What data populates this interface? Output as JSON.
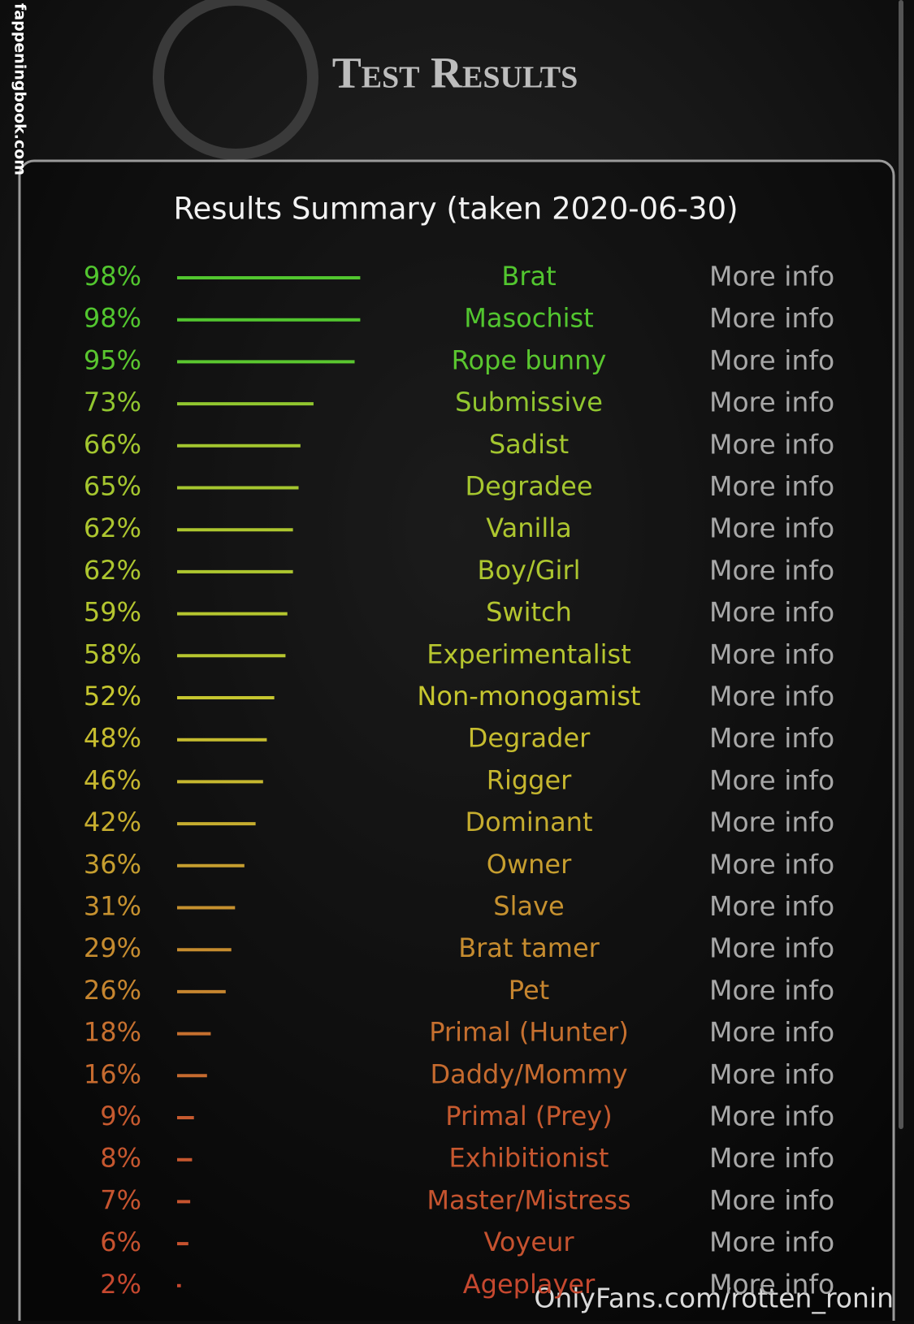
{
  "header": {
    "title": "Test Results",
    "watermark_side": "fappeningbook.com",
    "watermark_bottom": "OnlyFans.com/rotten_ronin"
  },
  "summary": {
    "title": "Results Summary (taken 2020-06-30)",
    "rows": [
      {
        "value": 98,
        "label": "98%",
        "name": "Brat",
        "link": "More info"
      },
      {
        "value": 98,
        "label": "98%",
        "name": "Masochist",
        "link": "More info"
      },
      {
        "value": 95,
        "label": "95%",
        "name": "Rope bunny",
        "link": "More info"
      },
      {
        "value": 73,
        "label": "73%",
        "name": "Submissive",
        "link": "More info"
      },
      {
        "value": 66,
        "label": "66%",
        "name": "Sadist",
        "link": "More info"
      },
      {
        "value": 65,
        "label": "65%",
        "name": "Degradee",
        "link": "More info"
      },
      {
        "value": 62,
        "label": "62%",
        "name": "Vanilla",
        "link": "More info"
      },
      {
        "value": 62,
        "label": "62%",
        "name": "Boy/Girl",
        "link": "More info"
      },
      {
        "value": 59,
        "label": "59%",
        "name": "Switch",
        "link": "More info"
      },
      {
        "value": 58,
        "label": "58%",
        "name": "Experimentalist",
        "link": "More info"
      },
      {
        "value": 52,
        "label": "52%",
        "name": "Non-monogamist",
        "link": "More info"
      },
      {
        "value": 48,
        "label": "48%",
        "name": "Degrader",
        "link": "More info"
      },
      {
        "value": 46,
        "label": "46%",
        "name": "Rigger",
        "link": "More info"
      },
      {
        "value": 42,
        "label": "42%",
        "name": "Dominant",
        "link": "More info"
      },
      {
        "value": 36,
        "label": "36%",
        "name": "Owner",
        "link": "More info"
      },
      {
        "value": 31,
        "label": "31%",
        "name": "Slave",
        "link": "More info"
      },
      {
        "value": 29,
        "label": "29%",
        "name": "Brat tamer",
        "link": "More info"
      },
      {
        "value": 26,
        "label": "26%",
        "name": "Pet",
        "link": "More info"
      },
      {
        "value": 18,
        "label": "18%",
        "name": "Primal (Hunter)",
        "link": "More info"
      },
      {
        "value": 16,
        "label": "16%",
        "name": "Daddy/Mommy",
        "link": "More info"
      },
      {
        "value": 9,
        "label": "9%",
        "name": "Primal (Prey)",
        "link": "More info"
      },
      {
        "value": 8,
        "label": "8%",
        "name": "Exhibitionist",
        "link": "More info"
      },
      {
        "value": 7,
        "label": "7%",
        "name": "Master/Mistress",
        "link": "More info"
      },
      {
        "value": 6,
        "label": "6%",
        "name": "Voyeur",
        "link": "More info"
      },
      {
        "value": 2,
        "label": "2%",
        "name": "Ageplayer",
        "link": "More info"
      }
    ]
  }
}
